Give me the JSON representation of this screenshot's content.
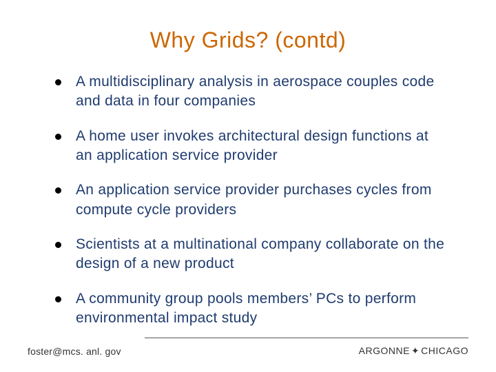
{
  "slide": {
    "title": "Why Grids? (contd)",
    "title_color": "#cc6600",
    "body_color": "#1f3b6e",
    "bullets": [
      "A multidisciplinary analysis in aerospace couples code and data in four companies",
      "A home user invokes architectural design functions at an application service provider",
      "An application service provider purchases cycles from compute cycle providers",
      "Scientists at a multinational company collaborate on the design of a new product",
      "A community group pools members’ PCs to perform environmental impact study"
    ],
    "footer": {
      "email": "foster@mcs. anl. gov",
      "org_left": "ARGONNE",
      "org_right": "CHICAGO",
      "cross_glyph": "✦"
    }
  }
}
